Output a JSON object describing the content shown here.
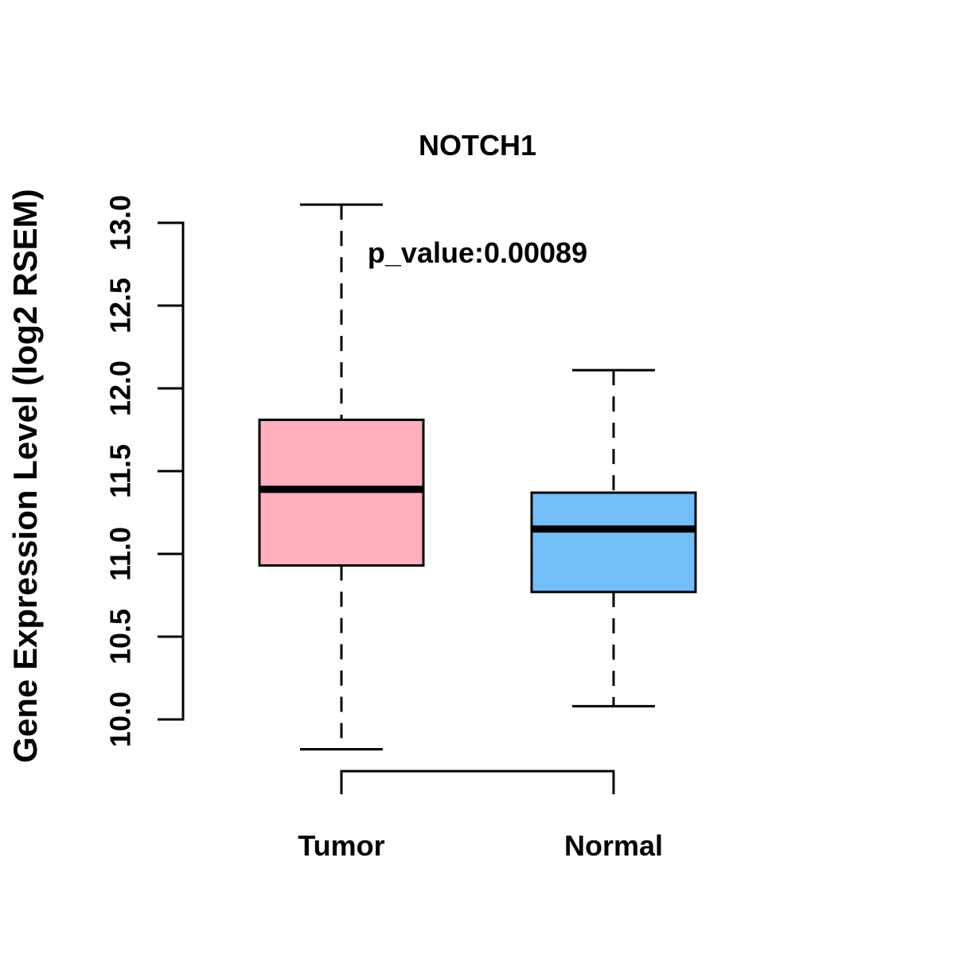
{
  "page": {
    "background_color": "#FFFFFF"
  },
  "chart_data": {
    "type": "boxplot",
    "title": "NOTCH1",
    "subtitle": "p_value:0.00089",
    "ylabel": "Gene Expression Level (log2 RSEM)",
    "xlabel": "",
    "ylim": [
      10.0,
      13.0
    ],
    "yticks": [
      10.0,
      10.5,
      11.0,
      11.5,
      12.0,
      12.5,
      13.0
    ],
    "ytick_labels": [
      "10.0",
      "10.5",
      "11.0",
      "11.5",
      "12.0",
      "12.5",
      "13.0"
    ],
    "grid": false,
    "legend": "none",
    "categories": [
      "Tumor",
      "Normal"
    ],
    "series": [
      {
        "name": "Tumor",
        "fill_color": "#FFAFBE",
        "whisker_low": 9.82,
        "q1": 10.93,
        "median": 11.39,
        "q3": 11.81,
        "whisker_high": 13.11,
        "whisker_style": "dashed"
      },
      {
        "name": "Normal",
        "fill_color": "#74BEF8",
        "whisker_low": 10.08,
        "q1": 10.77,
        "median": 11.15,
        "q3": 11.37,
        "whisker_high": 12.11,
        "whisker_style": "dashed"
      }
    ],
    "significance_bracket": {
      "between": [
        "Tumor",
        "Normal"
      ],
      "shape": "horizontal line with short downward legs below plot"
    },
    "box_border_color": "#000000",
    "median_color": "#000000",
    "axis_color": "#000000"
  }
}
